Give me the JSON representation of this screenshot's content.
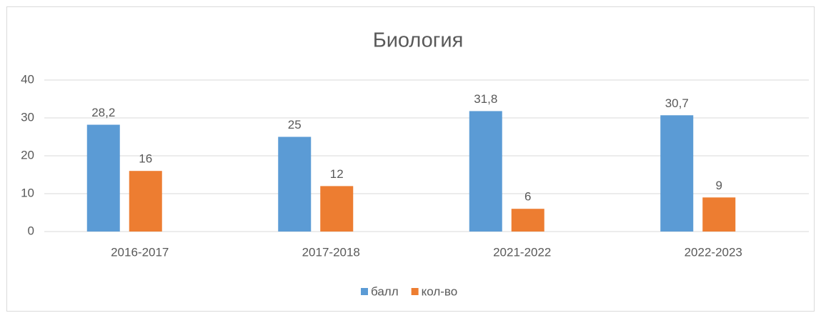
{
  "chart_data": {
    "type": "bar",
    "title": "Биология",
    "categories": [
      "2016-2017",
      "2017-2018",
      "2021-2022",
      "2022-2023"
    ],
    "series": [
      {
        "name": "балл",
        "color": "#5b9bd5",
        "values": [
          28.2,
          25,
          31.8,
          30.7
        ],
        "value_labels": [
          "28,2",
          "25",
          "31,8",
          "30,7"
        ]
      },
      {
        "name": "кол-во",
        "color": "#ed7d31",
        "values": [
          16,
          12,
          6,
          9
        ]
      }
    ],
    "ylim": [
      0,
      40
    ],
    "yticks": [
      0,
      10,
      20,
      30,
      40
    ],
    "grid": true,
    "legend": "bottom"
  }
}
